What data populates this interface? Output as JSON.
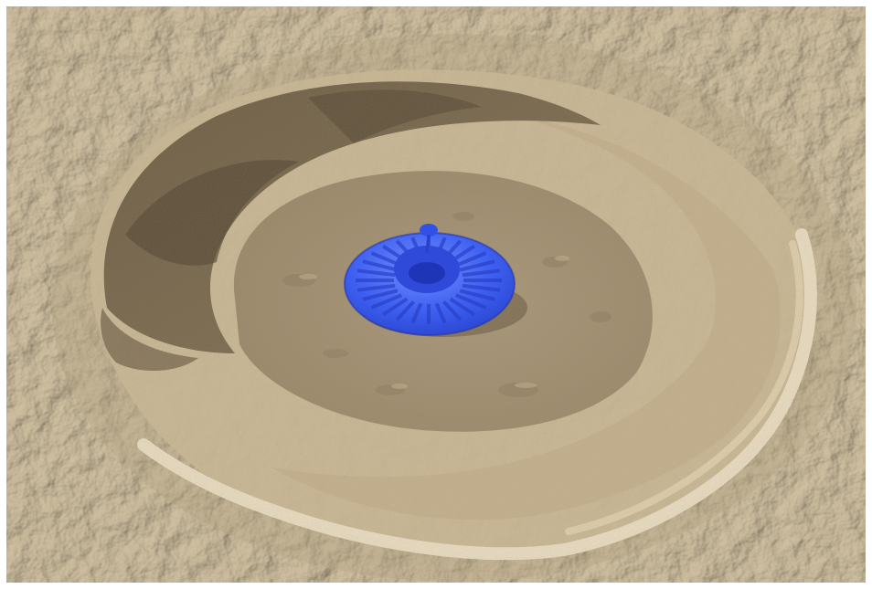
{
  "scene": {
    "subject": "lunar-crater-with-blue-dish-object",
    "colors": {
      "terrain_base": "#a08f72",
      "terrain_light": "#c9b795",
      "terrain_dark": "#6f5f45",
      "crater_floor": "#a39071",
      "crater_wall_shadow": "#6a5a40",
      "rim_highlight": "#efe3c8",
      "object_blue": "#3d5ff0",
      "object_blue_dark": "#1f35b8",
      "object_blue_light": "#6f8cff"
    }
  }
}
